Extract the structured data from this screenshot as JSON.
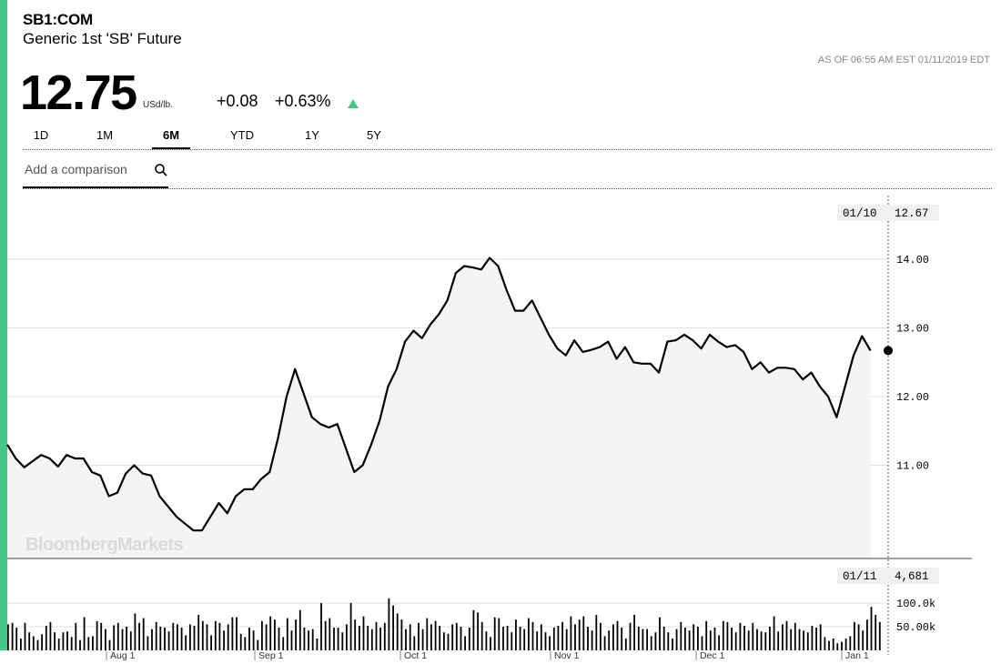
{
  "header": {
    "ticker": "SB1:COM",
    "name": "Generic 1st 'SB' Future",
    "as_of": "AS OF 06:55 AM EST 01/11/2019 EDT",
    "price": "12.75",
    "unit": "USd/lb.",
    "change": "+0.08",
    "change_pct": "+0.63%"
  },
  "tabs": [
    {
      "label": "1D",
      "active": false
    },
    {
      "label": "1M",
      "active": false
    },
    {
      "label": "6M",
      "active": true
    },
    {
      "label": "YTD",
      "active": false
    },
    {
      "label": "1Y",
      "active": false
    },
    {
      "label": "5Y",
      "active": false
    }
  ],
  "compare": {
    "placeholder": "Add a comparison"
  },
  "watermark": "BloombergMarkets",
  "colors": {
    "accent": "#43c887",
    "line": "#000000",
    "area": "#f4f4f4",
    "grid": "#dddddd"
  },
  "chart_data": [
    {
      "type": "line",
      "title": "",
      "xlabel": "",
      "ylabel": "",
      "x_ticks": [
        "Aug 1",
        "Sep 1",
        "Oct 1",
        "Nov 1",
        "Dec 1",
        "Jan 1"
      ],
      "y_ticks": [
        "14.00",
        "13.00",
        "12.00",
        "11.00"
      ],
      "ylim": [
        9.9,
        14.7
      ],
      "grid": true,
      "crosshair": {
        "date": "01/10",
        "value": "12.67"
      },
      "series": [
        {
          "values": [
            11.3,
            11.1,
            10.97,
            11.06,
            11.15,
            11.1,
            10.98,
            11.15,
            11.1,
            11.1,
            10.9,
            10.85,
            10.55,
            10.6,
            10.88,
            11.0,
            10.88,
            10.85,
            10.55,
            10.4,
            10.25,
            10.15,
            10.05,
            10.05,
            10.25,
            10.45,
            10.3,
            10.55,
            10.65,
            10.65,
            10.8,
            10.9,
            11.4,
            12.0,
            12.4,
            12.05,
            11.7,
            11.6,
            11.55,
            11.6,
            11.25,
            10.9,
            11.0,
            11.3,
            11.65,
            12.15,
            12.4,
            12.8,
            12.96,
            12.85,
            13.05,
            13.2,
            13.4,
            13.8,
            13.9,
            13.88,
            13.85,
            14.02,
            13.9,
            13.55,
            13.25,
            13.25,
            13.4,
            13.15,
            12.9,
            12.7,
            12.6,
            12.82,
            12.65,
            12.68,
            12.72,
            12.8,
            12.55,
            12.72,
            12.5,
            12.48,
            12.48,
            12.35,
            12.8,
            12.82,
            12.9,
            12.82,
            12.7,
            12.9,
            12.8,
            12.72,
            12.75,
            12.65,
            12.4,
            12.5,
            12.35,
            12.42,
            12.42,
            12.4,
            12.25,
            12.35,
            12.15,
            12.0,
            11.7,
            12.15,
            12.6,
            12.88,
            12.67
          ],
          "x_start": 8,
          "x_step": 9.3
        }
      ]
    },
    {
      "type": "bar",
      "title": "",
      "y_ticks": [
        "100.0k",
        "50.00k"
      ],
      "ylim": [
        0,
        160000
      ],
      "crosshair": {
        "date": "01/11",
        "value": "4,681"
      },
      "series": [
        {
          "values": [
            55000,
            58000,
            48000,
            25000,
            58000,
            38000,
            30000,
            22000,
            34000,
            52000,
            60000,
            38000,
            25000,
            38000,
            40000,
            28000,
            58000,
            22000,
            70000,
            28000,
            30000,
            62000,
            58000,
            45000,
            22000,
            53000,
            58000,
            45000,
            50000,
            40000,
            78000,
            58000,
            68000,
            30000,
            45000,
            60000,
            50000,
            48000,
            40000,
            58000,
            55000,
            48000,
            32000,
            55000,
            52000,
            75000,
            62000,
            55000,
            32000,
            62000,
            58000,
            42000,
            55000,
            70000,
            70000,
            35000,
            28000,
            48000,
            42000,
            22000,
            62000,
            55000,
            72000,
            65000,
            48000,
            28000,
            68000,
            42000,
            65000,
            85000,
            48000,
            42000,
            45000,
            25000,
            100000,
            62000,
            68000,
            48000,
            48000,
            38000,
            55000,
            100000,
            65000,
            52000,
            72000,
            52000,
            45000,
            60000,
            48000,
            58000,
            110000,
            95000,
            78000,
            65000,
            45000,
            55000,
            30000,
            58000,
            45000,
            68000,
            55000,
            62000,
            52000,
            38000,
            35000,
            55000,
            58000,
            50000,
            30000,
            48000,
            85000,
            80000,
            60000,
            40000,
            28000,
            70000,
            68000,
            50000,
            52000,
            38000,
            65000,
            50000,
            45000,
            68000,
            60000,
            40000,
            55000,
            38000,
            30000,
            48000,
            52000,
            60000,
            45000,
            72000,
            55000,
            65000,
            72000,
            50000,
            42000,
            75000,
            58000,
            30000,
            42000,
            55000,
            62000,
            48000,
            25000,
            58000,
            75000,
            50000,
            45000,
            45000,
            30000,
            38000,
            70000,
            50000,
            38000,
            25000,
            45000,
            60000,
            48000,
            42000,
            55000,
            50000,
            30000,
            62000,
            42000,
            48000,
            32000,
            62000,
            60000,
            48000,
            38000,
            58000,
            52000,
            42000,
            58000,
            45000,
            40000,
            38000,
            50000,
            72000,
            40000,
            55000,
            62000,
            45000,
            58000,
            45000,
            42000,
            38000,
            52000,
            48000,
            55000,
            28000,
            20000,
            25000,
            15000,
            18000,
            25000,
            30000,
            60000,
            55000,
            42000,
            65000,
            92000,
            75000,
            60000
          ],
          "x_start": 8,
          "x_step": 4.65
        }
      ]
    }
  ]
}
